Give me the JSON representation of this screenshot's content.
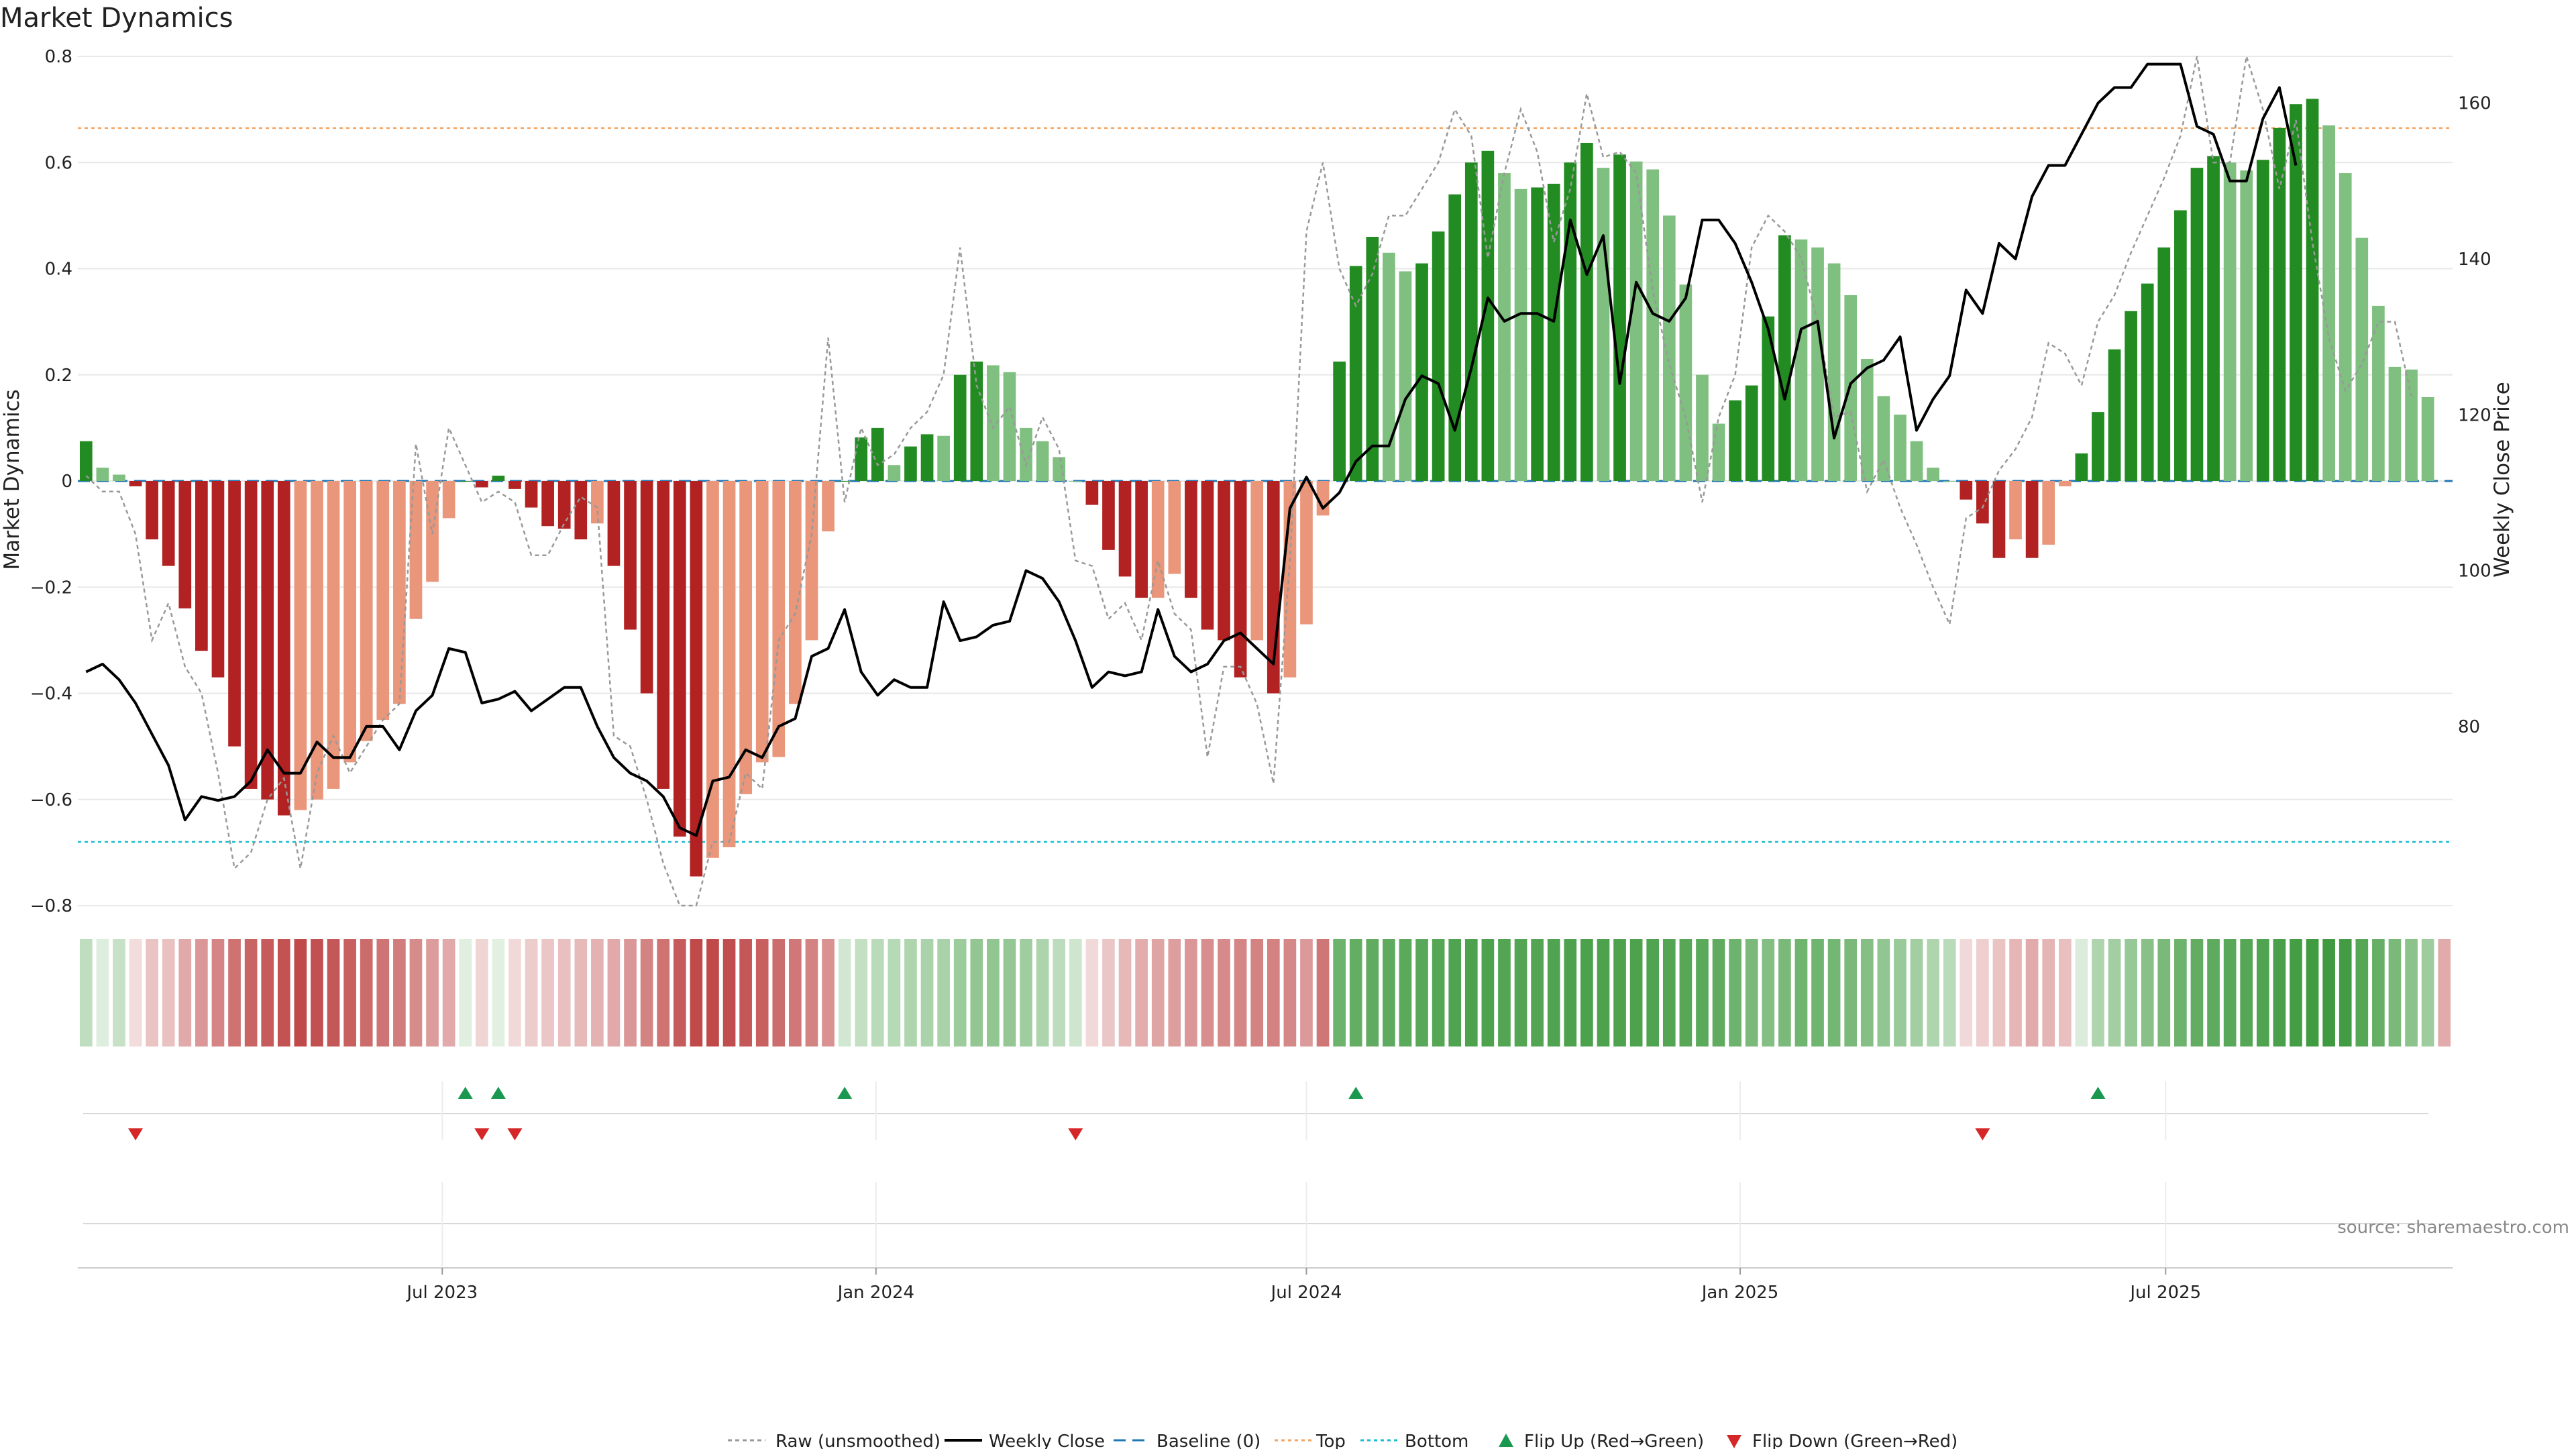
{
  "chart_data": {
    "type": "bar",
    "title": "Market Dynamics",
    "ylabel": "Market Dynamics",
    "ylabel_right": "Weekly Close Price",
    "ylim": [
      -0.8,
      0.8
    ],
    "ylim_right": [
      57,
      166
    ],
    "y_ticks": [
      {
        "v": 0.8,
        "label": "0.8"
      },
      {
        "v": 0.6,
        "label": "0.6"
      },
      {
        "v": 0.4,
        "label": "0.4"
      },
      {
        "v": 0.2,
        "label": "0.2"
      },
      {
        "v": 0,
        "label": "0"
      },
      {
        "v": -0.2,
        "label": "−0.2"
      },
      {
        "v": -0.4,
        "label": "−0.4"
      },
      {
        "v": -0.6,
        "label": "−0.6"
      },
      {
        "v": -0.8,
        "label": "−0.8"
      }
    ],
    "y_ticks_right": [
      {
        "v": 160,
        "label": "160"
      },
      {
        "v": 140,
        "label": "140"
      },
      {
        "v": 120,
        "label": "120"
      },
      {
        "v": 100,
        "label": "100"
      },
      {
        "v": 80,
        "label": "80"
      }
    ],
    "x_ticks": [
      {
        "week": 21.6,
        "label": "Jul 2023"
      },
      {
        "week": 47.9,
        "label": "Jan 2024"
      },
      {
        "week": 74.0,
        "label": "Jul 2024"
      },
      {
        "week": 100.3,
        "label": "Jan 2025"
      },
      {
        "week": 126.1,
        "label": "Jul 2025"
      }
    ],
    "x_range": [
      -0.5,
      143.5
    ],
    "reference_lines": {
      "top": 0.665,
      "bottom": -0.68,
      "baseline": 0
    },
    "colors": {
      "strong_green": "#228b22",
      "light_green": "#7fbf7f",
      "strong_red": "#b22222",
      "light_red": "#e9967a",
      "raw": "#999999",
      "close": "#000000",
      "baseline": "#1f77b4",
      "top": "#f4a460",
      "bottom": "#17becf",
      "flip_up": "#1a9850",
      "flip_down": "#d62728",
      "grid": "#e8e8e8"
    },
    "series": [
      {
        "name": "Market Dynamics",
        "values": [
          0.075,
          0.025,
          0.012,
          -0.01,
          -0.11,
          -0.16,
          -0.24,
          -0.32,
          -0.37,
          -0.5,
          -0.58,
          -0.6,
          -0.63,
          -0.62,
          -0.6,
          -0.58,
          -0.53,
          -0.49,
          -0.45,
          -0.42,
          -0.26,
          -0.19,
          -0.07,
          0,
          -0.012,
          0.01,
          -0.015,
          -0.05,
          -0.085,
          -0.09,
          -0.11,
          -0.08,
          -0.16,
          -0.28,
          -0.4,
          -0.58,
          -0.67,
          -0.745,
          -0.71,
          -0.69,
          -0.59,
          -0.53,
          -0.52,
          -0.42,
          -0.3,
          -0.095,
          0,
          0.082,
          0.1,
          0.03,
          0.065,
          0.088,
          0.085,
          0.2,
          0.225,
          0.218,
          0.205,
          0.1,
          0.075,
          0.045,
          0,
          -0.045,
          -0.13,
          -0.18,
          -0.22,
          -0.22,
          -0.175,
          -0.22,
          -0.28,
          -0.3,
          -0.37,
          -0.3,
          -0.4,
          -0.37,
          -0.27,
          -0.065,
          0.225,
          0.405,
          0.46,
          0.43,
          0.395,
          0.41,
          0.47,
          0.54,
          0.6,
          0.622,
          0.58,
          0.55,
          0.553,
          0.56,
          0.6,
          0.637,
          0.59,
          0.615,
          0.602,
          0.587,
          0.5,
          0.37,
          0.2,
          0.108,
          0.152,
          0.18,
          0.31,
          0.463,
          0.455,
          0.44,
          0.41,
          0.35,
          0.23,
          0.16,
          0.125,
          0.075,
          0.025,
          0,
          -0.035,
          -0.08,
          -0.145,
          -0.11,
          -0.145,
          -0.12,
          -0.01,
          0.052,
          0.13,
          0.248,
          0.32,
          0.372,
          0.44,
          0.51,
          0.59,
          0.612,
          0.6,
          0.585,
          0.605,
          0.665,
          0.71,
          0.72,
          0.67,
          0.58,
          0.458,
          0.33,
          0.215,
          0.21,
          0.158
        ]
      },
      {
        "name": "Raw (unsmoothed)",
        "values": [
          0.01,
          -0.02,
          -0.02,
          -0.1,
          -0.3,
          -0.23,
          -0.35,
          -0.4,
          -0.55,
          -0.73,
          -0.7,
          -0.6,
          -0.56,
          -0.73,
          -0.55,
          -0.48,
          -0.55,
          -0.5,
          -0.45,
          -0.42,
          0.07,
          -0.1,
          0.1,
          0.03,
          -0.04,
          -0.02,
          -0.04,
          -0.14,
          -0.14,
          -0.08,
          -0.03,
          -0.05,
          -0.48,
          -0.5,
          -0.6,
          -0.72,
          -0.8,
          -0.8,
          -0.68,
          -0.68,
          -0.55,
          -0.58,
          -0.3,
          -0.25,
          -0.1,
          0.27,
          -0.04,
          0.1,
          0.03,
          0.05,
          0.1,
          0.13,
          0.2,
          0.44,
          0.18,
          0.1,
          0.14,
          0.03,
          0.12,
          0.06,
          -0.15,
          -0.16,
          -0.26,
          -0.23,
          -0.3,
          -0.15,
          -0.25,
          -0.28,
          -0.52,
          -0.35,
          -0.35,
          -0.42,
          -0.57,
          -0.15,
          0.47,
          0.6,
          0.4,
          0.33,
          0.39,
          0.5,
          0.5,
          0.55,
          0.6,
          0.7,
          0.65,
          0.42,
          0.58,
          0.7,
          0.62,
          0.45,
          0.55,
          0.73,
          0.61,
          0.62,
          0.58,
          0.36,
          0.22,
          0.12,
          -0.04,
          0.12,
          0.2,
          0.44,
          0.5,
          0.47,
          0.42,
          0.3,
          0.12,
          0.13,
          -0.02,
          0.04,
          -0.05,
          -0.12,
          -0.2,
          -0.27,
          -0.07,
          -0.05,
          0.02,
          0.06,
          0.12,
          0.26,
          0.24,
          0.18,
          0.3,
          0.35,
          0.43,
          0.5,
          0.57,
          0.65,
          0.8,
          0.6,
          0.6,
          0.8,
          0.7,
          0.55,
          0.68,
          0.45,
          0.27,
          0.17,
          0.22,
          0.3,
          0.3,
          0.16
        ]
      },
      {
        "name": "Weekly Close",
        "values": [
          87,
          88,
          86,
          83,
          79,
          75,
          68,
          71,
          70.5,
          71,
          73,
          77,
          74,
          74,
          78,
          76,
          76,
          80,
          80,
          77,
          82,
          84,
          90,
          89.5,
          83,
          83.5,
          84.5,
          82,
          83.5,
          85,
          85,
          80,
          76,
          74,
          73,
          71,
          67,
          66,
          73,
          73.5,
          77,
          76,
          80,
          81,
          89,
          90,
          95,
          87,
          84,
          86,
          85,
          85,
          96,
          91,
          91.5,
          93,
          93.5,
          100,
          99,
          96,
          91,
          85,
          87,
          86.5,
          87,
          95,
          89,
          87,
          88,
          91,
          92,
          90,
          88,
          108,
          112,
          108,
          110,
          114,
          116,
          116,
          122,
          125,
          124,
          118,
          126,
          135,
          132,
          133,
          133,
          132,
          145,
          138,
          143,
          124,
          137,
          133,
          132,
          135,
          145,
          145,
          142,
          137,
          131,
          122,
          131,
          132,
          117,
          124,
          126,
          127,
          130,
          118,
          122,
          125,
          136,
          133,
          142,
          140,
          148,
          152,
          152,
          156,
          160,
          162,
          162,
          165,
          165,
          165,
          157,
          156,
          150,
          150,
          158,
          162,
          152
        ]
      }
    ],
    "flip_up_weeks": [
      23,
      25,
      46,
      77,
      122
    ],
    "flip_down_weeks": [
      3,
      24,
      26,
      60,
      115
    ],
    "strip_shades": [
      0.29,
      0.15,
      0.26,
      0.16,
      0.27,
      0.28,
      0.39,
      0.47,
      0.55,
      0.64,
      0.7,
      0.74,
      0.78,
      0.82,
      0.79,
      0.76,
      0.72,
      0.67,
      0.63,
      0.59,
      0.52,
      0.45,
      0.39,
      0.14,
      0.19,
      0.13,
      0.17,
      0.23,
      0.26,
      0.29,
      0.31,
      0.35,
      0.39,
      0.47,
      0.56,
      0.64,
      0.74,
      0.82,
      0.82,
      0.8,
      0.76,
      0.72,
      0.66,
      0.61,
      0.56,
      0.5,
      0.21,
      0.27,
      0.31,
      0.33,
      0.36,
      0.38,
      0.39,
      0.45,
      0.49,
      0.5,
      0.48,
      0.43,
      0.37,
      0.3,
      0.22,
      0.17,
      0.26,
      0.32,
      0.37,
      0.41,
      0.44,
      0.47,
      0.51,
      0.53,
      0.55,
      0.56,
      0.57,
      0.54,
      0.46,
      0.62,
      0.66,
      0.7,
      0.72,
      0.73,
      0.74,
      0.75,
      0.77,
      0.79,
      0.8,
      0.8,
      0.78,
      0.78,
      0.78,
      0.79,
      0.8,
      0.81,
      0.8,
      0.8,
      0.8,
      0.79,
      0.78,
      0.76,
      0.74,
      0.72,
      0.66,
      0.6,
      0.56,
      0.6,
      0.65,
      0.65,
      0.63,
      0.6,
      0.55,
      0.5,
      0.46,
      0.42,
      0.36,
      0.31,
      0.17,
      0.22,
      0.27,
      0.33,
      0.38,
      0.34,
      0.29,
      0.16,
      0.36,
      0.42,
      0.47,
      0.54,
      0.6,
      0.66,
      0.71,
      0.73,
      0.75,
      0.77,
      0.79,
      0.82,
      0.84,
      0.86,
      0.87,
      0.85,
      0.77,
      0.69,
      0.6,
      0.52,
      0.44,
      0.38
    ],
    "legend": [
      "Raw (unsmoothed)",
      "Weekly Close",
      "Baseline (0)",
      "Top",
      "Bottom",
      "Flip Up (Red→Green)",
      "Flip Down (Green→Red)"
    ],
    "source": "source: sharemaestro.com"
  }
}
